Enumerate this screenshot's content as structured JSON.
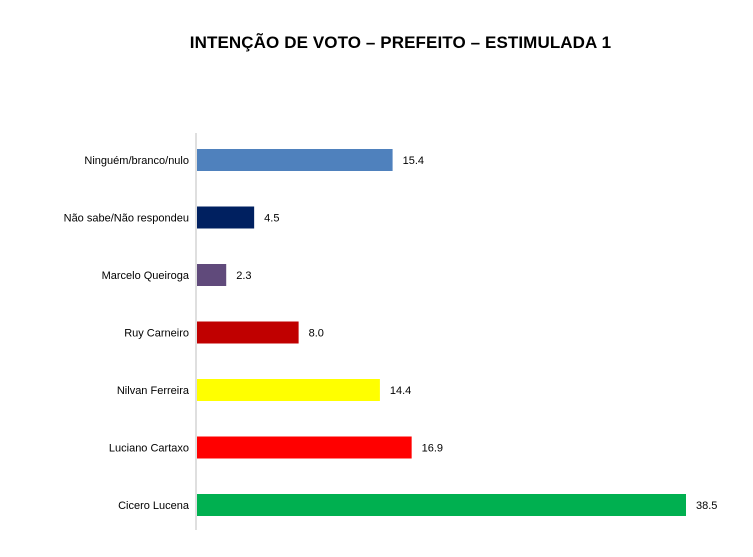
{
  "chart_data": {
    "type": "bar",
    "orientation": "horizontal",
    "title": "INTENÇÃO DE VOTO – PREFEITO – ESTIMULADA 1",
    "xlabel": "",
    "ylabel": "",
    "xlim": [
      0,
      38.5
    ],
    "grid": false,
    "legend": "none",
    "categories": [
      "Ninguém/branco/nulo",
      "Não sabe/Não respondeu",
      "Marcelo Queiroga",
      "Ruy Carneiro",
      "Nilvan Ferreira",
      "Luciano Cartaxo",
      "Cicero Lucena"
    ],
    "values": [
      15.4,
      4.5,
      2.3,
      8.0,
      14.4,
      16.9,
      38.5
    ],
    "value_labels": [
      "15.4",
      "4.5",
      "2.3",
      "8.0",
      "14.4",
      "16.9",
      "38.5"
    ],
    "colors": [
      "#4F81BD",
      "#002060",
      "#604A7B",
      "#C00000",
      "#FFFF00",
      "#FF0000",
      "#00B050"
    ]
  }
}
